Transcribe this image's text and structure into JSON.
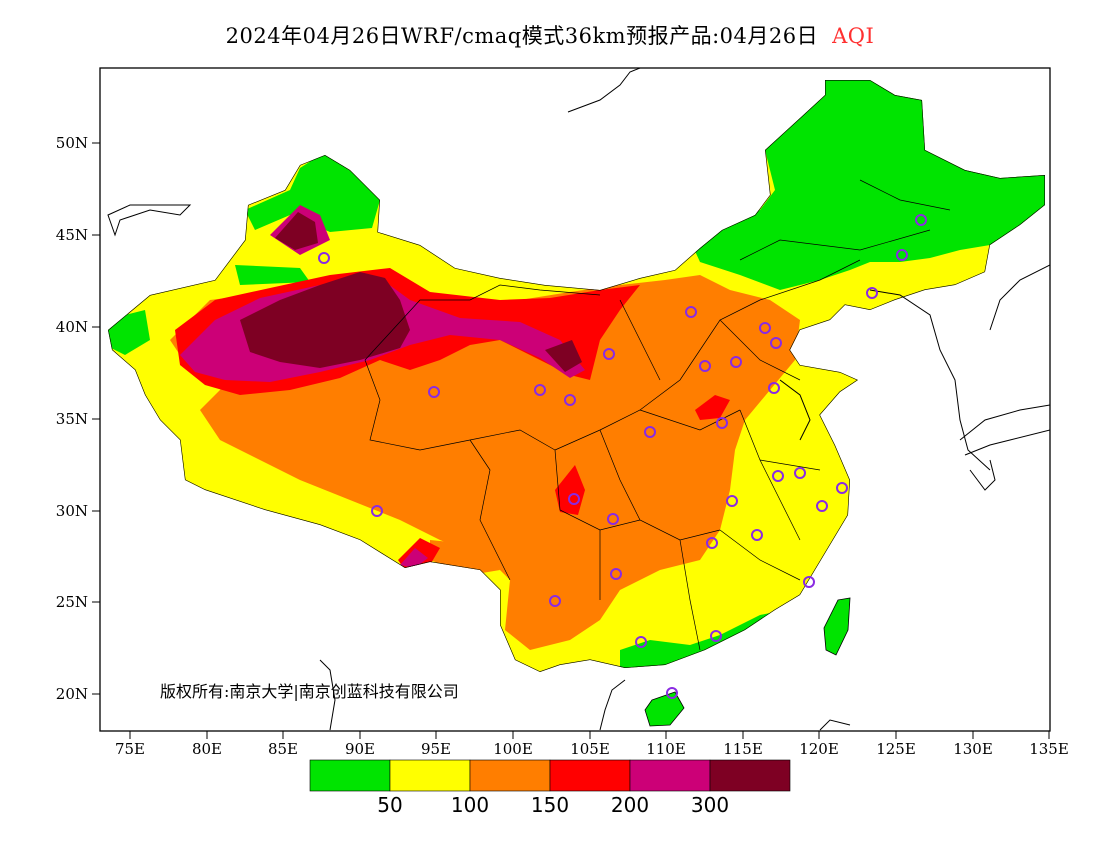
{
  "title": {
    "main": "2024年04月26日WRF/cmaq模式36km预报产品:04月26日",
    "variable": "AQI"
  },
  "axes": {
    "lat_labels": [
      "50N",
      "45N",
      "40N",
      "35N",
      "30N",
      "25N",
      "20N"
    ],
    "lon_labels": [
      "75E",
      "80E",
      "85E",
      "90E",
      "95E",
      "100E",
      "105E",
      "110E",
      "115E",
      "120E",
      "125E",
      "130E",
      "135E"
    ]
  },
  "copyright": "版权所有:南京大学|南京创蓝科技有限公司",
  "legend": {
    "colors": [
      "#00e400",
      "#ffff00",
      "#ff7e00",
      "#ff0000",
      "#cc0077",
      "#7e0023"
    ],
    "thresholds": [
      "50",
      "100",
      "150",
      "200",
      "300"
    ],
    "categories": [
      "0-50",
      "50-100",
      "100-150",
      "150-200",
      "200-300",
      ">300"
    ]
  },
  "map_colors": {
    "good": "#00e400",
    "moderate": "#ffff00",
    "usg": "#ff7e00",
    "unhealthy": "#ff0000",
    "very_unhealthy": "#cc0077",
    "hazardous": "#7e0023",
    "station_marker": "#8a2be2"
  }
}
